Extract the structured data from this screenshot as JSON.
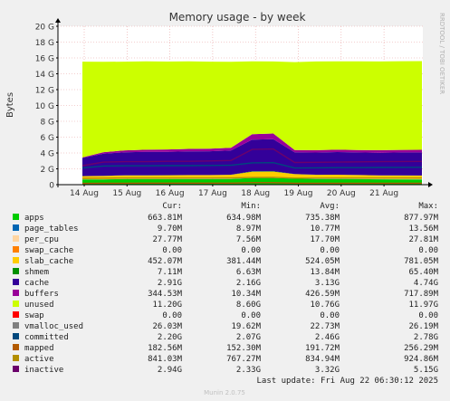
{
  "chart_data": {
    "type": "area",
    "title": "Memory usage - by week",
    "ylabel": "Bytes",
    "side_label": "RRDTOOL / TOBI OETIKER",
    "ylim": [
      0,
      20
    ],
    "y_unit": "G",
    "y_ticks": [
      "0",
      "2 G",
      "4 G",
      "6 G",
      "8 G",
      "10 G",
      "12 G",
      "14 G",
      "16 G",
      "18 G",
      "20 G"
    ],
    "x_ticks": [
      "14 Aug",
      "15 Aug",
      "16 Aug",
      "17 Aug",
      "18 Aug",
      "19 Aug",
      "20 Aug",
      "21 Aug"
    ],
    "x": [
      "14 Aug 00:00",
      "14 Aug 12:00",
      "15 Aug 00:00",
      "15 Aug 12:00",
      "16 Aug 00:00",
      "16 Aug 12:00",
      "17 Aug 00:00",
      "17 Aug 12:00",
      "18 Aug 00:00",
      "18 Aug 12:00",
      "19 Aug 00:00",
      "19 Aug 12:00",
      "20 Aug 00:00",
      "20 Aug 12:00",
      "21 Aug 00:00",
      "21 Aug 12:00",
      "22 Aug 00:00"
    ],
    "grid": true,
    "columns": [
      "Cur:",
      "Min:",
      "Avg:",
      "Max:"
    ],
    "legend": [
      {
        "name": "apps",
        "color": "#00cc00",
        "cur": "663.81M",
        "min": "634.98M",
        "avg": "735.38M",
        "max": "877.97M"
      },
      {
        "name": "page_tables",
        "color": "#0066b3",
        "cur": "9.70M",
        "min": "8.97M",
        "avg": "10.77M",
        "max": "13.56M"
      },
      {
        "name": "per_cpu",
        "color": "#ffd5a0",
        "cur": "27.77M",
        "min": "7.56M",
        "avg": "17.70M",
        "max": "27.81M"
      },
      {
        "name": "swap_cache",
        "color": "#ff8000",
        "cur": "0.00",
        "min": "0.00",
        "avg": "0.00",
        "max": "0.00"
      },
      {
        "name": "slab_cache",
        "color": "#ffcc00",
        "cur": "452.07M",
        "min": "381.44M",
        "avg": "524.05M",
        "max": "781.05M"
      },
      {
        "name": "shmem",
        "color": "#008f00",
        "cur": "7.11M",
        "min": "6.63M",
        "avg": "13.84M",
        "max": "65.40M"
      },
      {
        "name": "cache",
        "color": "#330099",
        "cur": "2.91G",
        "min": "2.16G",
        "avg": "3.13G",
        "max": "4.74G"
      },
      {
        "name": "buffers",
        "color": "#990099",
        "cur": "344.53M",
        "min": "10.34M",
        "avg": "426.59M",
        "max": "717.89M"
      },
      {
        "name": "unused",
        "color": "#ccff00",
        "cur": "11.20G",
        "min": "8.60G",
        "avg": "10.76G",
        "max": "11.97G"
      },
      {
        "name": "swap",
        "color": "#ff0000",
        "cur": "0.00",
        "min": "0.00",
        "avg": "0.00",
        "max": "0.00"
      },
      {
        "name": "vmalloc_used",
        "color": "#808080",
        "cur": "26.03M",
        "min": "19.62M",
        "avg": "22.73M",
        "max": "26.19M"
      },
      {
        "name": "committed",
        "color": "#00487d",
        "cur": "2.20G",
        "min": "2.07G",
        "avg": "2.46G",
        "max": "2.78G"
      },
      {
        "name": "mapped",
        "color": "#b35a00",
        "cur": "182.56M",
        "min": "152.30M",
        "avg": "191.72M",
        "max": "256.29M"
      },
      {
        "name": "active",
        "color": "#b38f00",
        "cur": "841.03M",
        "min": "767.27M",
        "avg": "834.94M",
        "max": "924.86M"
      },
      {
        "name": "inactive",
        "color": "#6b006b",
        "cur": "2.94G",
        "min": "2.33G",
        "avg": "3.32G",
        "max": "5.15G"
      }
    ],
    "stack_series": [
      {
        "name": "apps",
        "values": [
          0.66,
          0.66,
          0.7,
          0.7,
          0.7,
          0.7,
          0.7,
          0.72,
          0.85,
          0.85,
          0.75,
          0.72,
          0.72,
          0.7,
          0.68,
          0.67,
          0.66
        ]
      },
      {
        "name": "page_tables",
        "values": [
          0.01,
          0.01,
          0.01,
          0.01,
          0.01,
          0.01,
          0.01,
          0.01,
          0.012,
          0.012,
          0.011,
          0.01,
          0.01,
          0.01,
          0.01,
          0.01,
          0.01
        ]
      },
      {
        "name": "per_cpu",
        "values": [
          0.01,
          0.01,
          0.015,
          0.015,
          0.015,
          0.016,
          0.016,
          0.017,
          0.02,
          0.02,
          0.02,
          0.02,
          0.022,
          0.024,
          0.025,
          0.027,
          0.028
        ]
      },
      {
        "name": "slab_cache",
        "values": [
          0.4,
          0.42,
          0.45,
          0.45,
          0.46,
          0.47,
          0.48,
          0.5,
          0.75,
          0.76,
          0.55,
          0.5,
          0.5,
          0.48,
          0.46,
          0.45,
          0.45
        ]
      },
      {
        "name": "shmem",
        "values": [
          0.007,
          0.007,
          0.01,
          0.01,
          0.01,
          0.01,
          0.01,
          0.015,
          0.06,
          0.06,
          0.015,
          0.01,
          0.01,
          0.008,
          0.007,
          0.007,
          0.007
        ]
      },
      {
        "name": "cache",
        "values": [
          2.3,
          2.8,
          2.9,
          2.95,
          2.95,
          3.0,
          3.0,
          3.05,
          4.0,
          4.05,
          2.75,
          2.8,
          2.85,
          2.85,
          2.85,
          2.9,
          2.91
        ]
      },
      {
        "name": "buffers",
        "values": [
          0.05,
          0.2,
          0.25,
          0.28,
          0.3,
          0.31,
          0.32,
          0.35,
          0.68,
          0.7,
          0.28,
          0.29,
          0.3,
          0.31,
          0.32,
          0.33,
          0.34
        ]
      },
      {
        "name": "unused",
        "values": [
          12.1,
          11.4,
          11.2,
          11.15,
          11.1,
          11.05,
          11.0,
          10.85,
          9.2,
          9.1,
          11.1,
          11.2,
          11.15,
          11.2,
          11.2,
          11.2,
          11.2
        ]
      }
    ],
    "line_series": [
      {
        "name": "committed",
        "values": [
          2.1,
          2.35,
          2.38,
          2.38,
          2.4,
          2.4,
          2.42,
          2.45,
          2.75,
          2.78,
          2.1,
          2.12,
          2.15,
          2.15,
          2.17,
          2.18,
          2.2
        ]
      },
      {
        "name": "inactive",
        "values": [
          2.4,
          2.85,
          2.9,
          2.9,
          2.95,
          2.95,
          3.0,
          3.05,
          4.45,
          4.5,
          2.8,
          2.82,
          2.85,
          2.88,
          2.9,
          2.92,
          2.94
        ]
      },
      {
        "name": "active",
        "values": [
          0.8,
          0.82,
          0.83,
          0.83,
          0.84,
          0.84,
          0.84,
          0.85,
          0.9,
          0.92,
          0.82,
          0.82,
          0.83,
          0.83,
          0.84,
          0.84,
          0.84
        ]
      },
      {
        "name": "mapped",
        "values": [
          0.16,
          0.18,
          0.18,
          0.19,
          0.19,
          0.19,
          0.19,
          0.2,
          0.25,
          0.25,
          0.18,
          0.18,
          0.18,
          0.18,
          0.18,
          0.18,
          0.18
        ]
      }
    ],
    "last_update": "Last update: Fri Aug 22 06:30:12 2025",
    "footer": "Munin 2.0.75"
  }
}
